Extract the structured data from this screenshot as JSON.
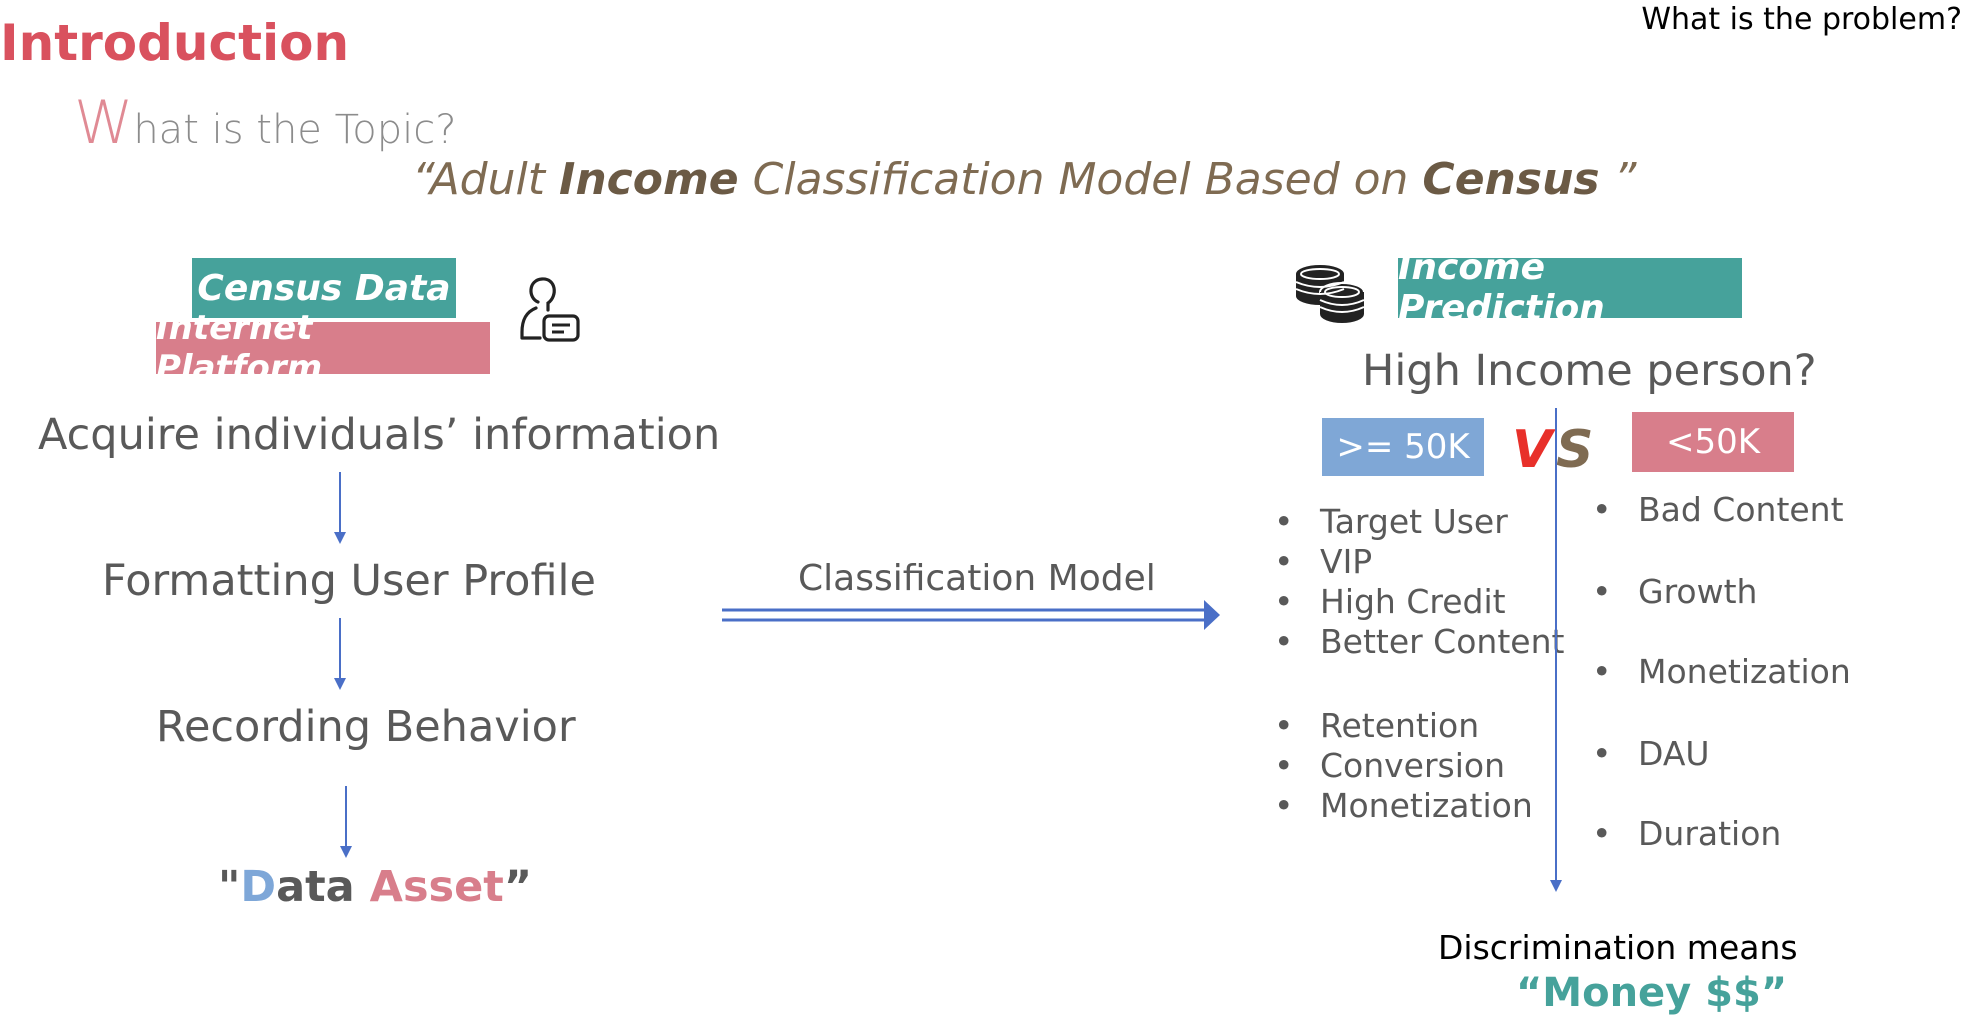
{
  "header": {
    "corner_title": "What is the problem?",
    "section_title": "Introduction",
    "topic_first_letter": "W",
    "topic_rest": "hat is the Topic?",
    "statement": {
      "open": "“Adult ",
      "bold1": "Income",
      "mid": " Classification Model Based on ",
      "bold2": "Census",
      "close": " ”"
    }
  },
  "left": {
    "badge_census": "Census Data",
    "badge_platform": "Internet Platform",
    "user_icon": "user-card-icon",
    "steps": [
      "Acquire individuals’ information",
      "Formatting User Profile",
      "Recording Behavior"
    ],
    "asset": {
      "open": "\"",
      "d": "D",
      "ata": "ata ",
      "asset": "Asset",
      "close": "”"
    }
  },
  "middle": {
    "label": "Classification Model"
  },
  "right": {
    "coins_icon": "coins-icon",
    "badge_income": "Income Prediction",
    "question": "High Income person?",
    "high_label": ">= 50K",
    "low_label": "<50K",
    "vs_v": "V",
    "vs_s": "S",
    "high_bullets_a": [
      "Target User",
      "VIP",
      "High Credit",
      "Better Content"
    ],
    "high_bullets_b": [
      "Retention",
      "Conversion",
      "Monetization"
    ],
    "low_bullets": [
      "Bad Content",
      "Growth",
      "Monetization",
      "DAU",
      "Duration"
    ],
    "discrimination": "Discrimination means",
    "money": "“Money $$”"
  },
  "colors": {
    "accent_red": "#d9515e",
    "teal": "#46a29b",
    "pink": "#d87e8b",
    "blue": "#7fa7d6",
    "arrow_blue": "#4a6fc7"
  }
}
